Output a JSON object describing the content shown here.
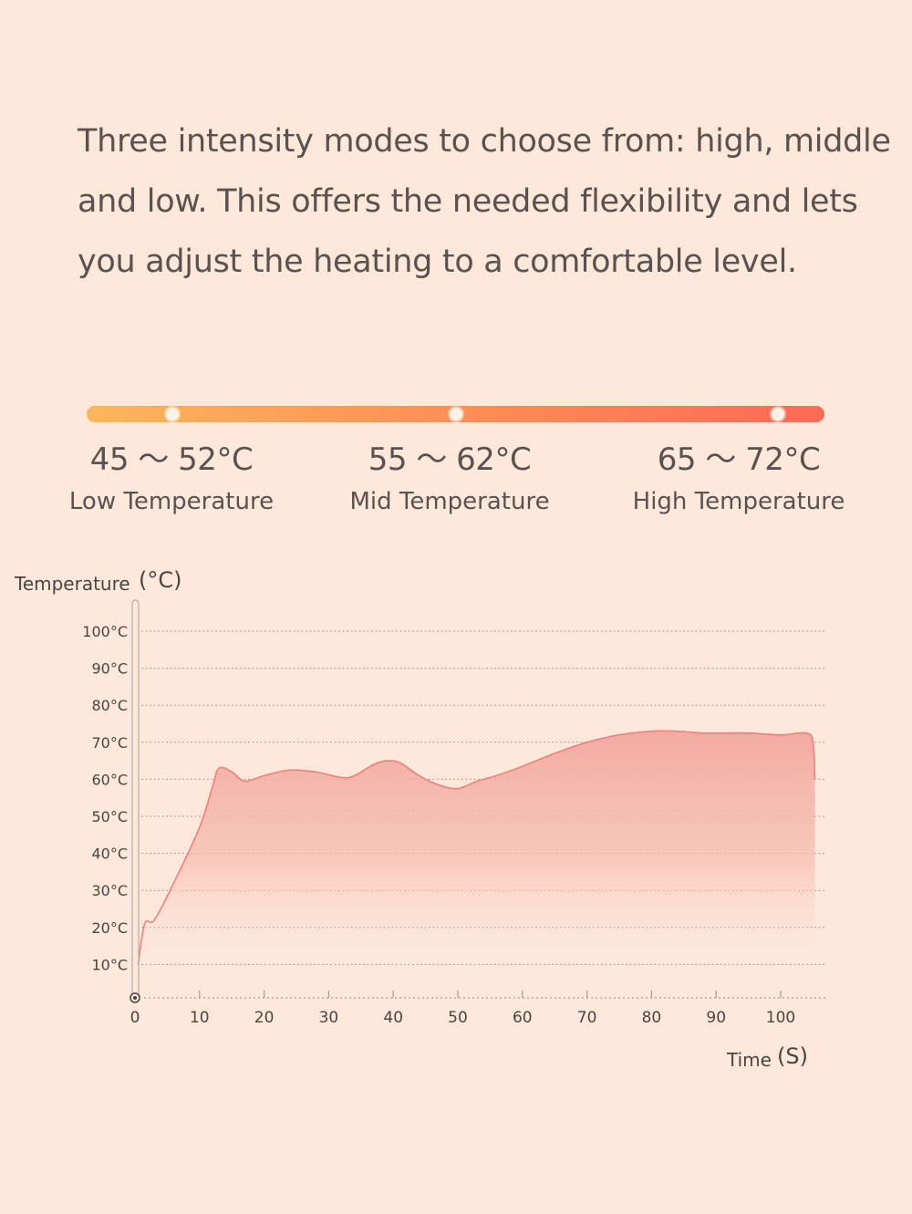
{
  "description": {
    "lines": [
      "Three intensity modes to choose from: high, middle",
      "and low. This offers the needed flexibility and lets",
      "you adjust the heating to a comfortable level."
    ]
  },
  "modes": [
    {
      "range": "45 ～ 52°C",
      "name": "Low Temperature"
    },
    {
      "range": "55 ～ 62°C",
      "name": "Mid Temperature"
    },
    {
      "range": "65 ～ 72°C",
      "name": "High Temperature"
    }
  ],
  "colors": {
    "background": "#fde8da",
    "bar_start": "#fdb55c",
    "bar_end": "#fb6a55",
    "curve": "#ef7f7a",
    "fill": "#f2a79f",
    "text": "#5a5250"
  },
  "chart_data": {
    "type": "area",
    "ylabel": "Temperature",
    "yunit": "(°C)",
    "xlabel": "Time",
    "xunit": "(S)",
    "xlim": [
      0,
      105
    ],
    "ylim": [
      0,
      100
    ],
    "x_ticks": [
      "0",
      "10",
      "20",
      "30",
      "40",
      "50",
      "60",
      "70",
      "80",
      "90",
      "100"
    ],
    "x_tick_values": [
      0,
      10,
      20,
      30,
      40,
      50,
      60,
      70,
      80,
      90,
      100
    ],
    "y_ticks": [
      "10°C",
      "20°C",
      "30°C",
      "40°C",
      "50°C",
      "60°C",
      "70°C",
      "80°C",
      "90°C",
      "100°C"
    ],
    "y_tick_values": [
      10,
      20,
      30,
      40,
      50,
      60,
      70,
      80,
      90,
      100
    ],
    "grid": true,
    "series": [
      {
        "x": [
          0.5,
          1.5,
          3,
          6,
          10,
          12,
          13,
          15,
          17,
          20,
          24,
          28,
          32,
          34,
          37,
          39,
          41,
          44,
          47,
          50,
          53,
          56,
          60,
          65,
          70,
          75,
          80,
          84,
          88,
          95,
          100,
          104,
          105,
          105.3
        ],
        "values": [
          10,
          21,
          22,
          32,
          47,
          58,
          63,
          62,
          59.5,
          61,
          62.5,
          62,
          60.5,
          61,
          64,
          65,
          64.5,
          61,
          58.5,
          57.5,
          59.5,
          61,
          63.5,
          67,
          70,
          72,
          73,
          73,
          72.5,
          72.5,
          72,
          72.5,
          70,
          60
        ]
      }
    ]
  }
}
